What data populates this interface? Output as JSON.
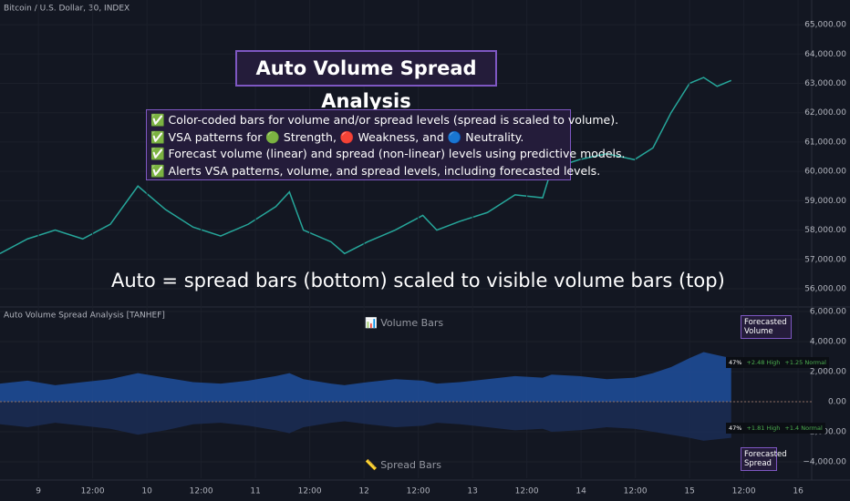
{
  "chart_data": [
    {
      "type": "line",
      "title": "Bitcoin / U.S. Dollar, 30, INDEX",
      "annotations": [
        "Auto Volume Spread Analysis",
        "✅ Color-coded bars for volume and/or spread levels (spread is scaled to volume).",
        "✅ VSA patterns for 🟢 Strength, 🔴 Weakness, and 🔵 Neutrality.",
        "✅ Forecast volume (linear) and spread (non-linear) levels using predictive models.",
        "✅ Alerts VSA patterns, volume, and spread levels, including forecasted levels.",
        "Auto = spread bars (bottom) scaled to visible volume bars (top)"
      ],
      "x": [
        -8.5,
        -2.4,
        3.7,
        9.8,
        15.9,
        22.0,
        28.1,
        34.2,
        40.3,
        46.4,
        52.5,
        55.5,
        58.6,
        64.7,
        67.7,
        72.8,
        78.9,
        85.0,
        88.1,
        93.2,
        99.3,
        105.4,
        111.5,
        113.5,
        119.6,
        125.7,
        131.8,
        135.9,
        139.9,
        144.0,
        147.1,
        150.1,
        153.2
      ],
      "values": [
        57200,
        57700,
        58000,
        57700,
        58200,
        59500,
        58700,
        58100,
        57800,
        58200,
        58800,
        59300,
        58000,
        57600,
        57200,
        57600,
        58000,
        58500,
        58000,
        58300,
        58600,
        59200,
        59100,
        60100,
        60400,
        60600,
        60400,
        60800,
        62000,
        63000,
        63200,
        62900,
        63100
      ],
      "color": "#26a69a",
      "xlim": [
        -8.5,
        171
      ],
      "ylim": [
        55380,
        65840
      ],
      "yticks": [
        {
          "value": 56000,
          "label": "56,000.00"
        },
        {
          "value": 57000,
          "label": "57,000.00"
        },
        {
          "value": 58000,
          "label": "58,000.00"
        },
        {
          "value": 59000,
          "label": "59,000.00"
        },
        {
          "value": 60000,
          "label": "60,000.00"
        },
        {
          "value": 61000,
          "label": "61,000.00"
        },
        {
          "value": 62000,
          "label": "62,000.00"
        },
        {
          "value": 63000,
          "label": "63,000.00"
        },
        {
          "value": 64000,
          "label": "64,000.00"
        },
        {
          "value": 65000,
          "label": "65,000.00"
        }
      ],
      "grid": true
    },
    {
      "type": "area",
      "title": "Auto Volume Spread Analysis [TANHEF]",
      "annotations": [
        "📊 Volume Bars",
        "📏 Spread Bars",
        "Forecasted Volume",
        "Forecasted Spread",
        "47%",
        "+2.48 High",
        "+1.25 Normal",
        "47%",
        "+1.81 High",
        "+1.4 Normal"
      ],
      "x": [
        -8.5,
        -2.4,
        3.7,
        9.8,
        15.9,
        22.0,
        28.1,
        34.2,
        40.3,
        46.4,
        52.5,
        55.5,
        58.6,
        64.7,
        67.7,
        72.8,
        78.9,
        85.0,
        88.1,
        93.2,
        99.3,
        105.4,
        111.5,
        113.5,
        119.6,
        125.7,
        131.8,
        135.9,
        139.9,
        144.0,
        147.1,
        150.1,
        153.2
      ],
      "series": [
        {
          "color": "#1e4f9c",
          "values": [
            1200,
            1400,
            1100,
            1300,
            1500,
            1900,
            1600,
            1300,
            1200,
            1400,
            1700,
            1900,
            1500,
            1200,
            1100,
            1300,
            1500,
            1400,
            1200,
            1300,
            1500,
            1700,
            1600,
            1800,
            1700,
            1500,
            1600,
            1900,
            2300,
            2900,
            3300,
            3100,
            2900
          ]
        },
        {
          "color": "#1b2d55",
          "values": [
            -1500,
            -1700,
            -1400,
            -1600,
            -1800,
            -2200,
            -1900,
            -1500,
            -1400,
            -1600,
            -1900,
            -2100,
            -1700,
            -1400,
            -1300,
            -1500,
            -1700,
            -1600,
            -1400,
            -1500,
            -1700,
            -1900,
            -1800,
            -2000,
            -1900,
            -1700,
            -1800,
            -2000,
            -2200,
            -2400,
            -2600,
            -2500,
            -2400
          ]
        }
      ],
      "xlim": [
        -8.5,
        171
      ],
      "ylim": [
        -5090,
        6300
      ],
      "yticks": [
        {
          "value": -4000,
          "label": "−4,000.00"
        },
        {
          "value": -2000,
          "label": "−2,000.00"
        },
        {
          "value": 0,
          "label": "0.00"
        },
        {
          "value": 2000,
          "label": "2,000.00"
        },
        {
          "value": 4000,
          "label": "4,000.00"
        },
        {
          "value": 6000,
          "label": "6,000.00"
        }
      ],
      "xticks": [
        {
          "value": 0,
          "label": "9"
        },
        {
          "value": 12,
          "label": "12:00"
        },
        {
          "value": 24,
          "label": "10"
        },
        {
          "value": 36,
          "label": "12:00"
        },
        {
          "value": 48,
          "label": "11"
        },
        {
          "value": 60,
          "label": "12:00"
        },
        {
          "value": 72,
          "label": "12"
        },
        {
          "value": 84,
          "label": "12:00"
        },
        {
          "value": 96,
          "label": "13"
        },
        {
          "value": 108,
          "label": "12:00"
        },
        {
          "value": 120,
          "label": "14"
        },
        {
          "value": 132,
          "label": "12:00"
        },
        {
          "value": 144,
          "label": "15"
        },
        {
          "value": 156,
          "label": "12:00"
        },
        {
          "value": 168,
          "label": "16"
        }
      ],
      "grid": true
    }
  ]
}
